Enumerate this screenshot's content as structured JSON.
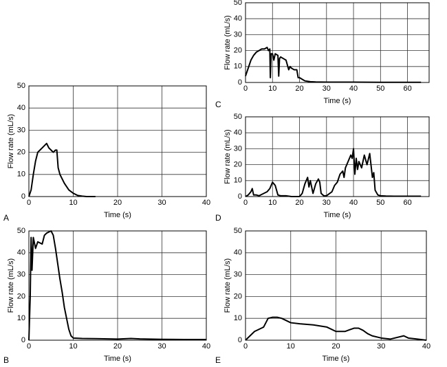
{
  "chart_data": [
    {
      "type": "line",
      "label": "A",
      "xlabel": "Time (s)",
      "ylabel": "Flow rate (mL/s)",
      "xlim": [
        0,
        40
      ],
      "ylim": [
        0,
        50
      ],
      "xticks": [
        0,
        10,
        20,
        30,
        40
      ],
      "yticks": [
        0,
        10,
        20,
        30,
        40,
        50
      ],
      "grid": true,
      "color": "#000000",
      "x": [
        0,
        0.5,
        1,
        1.5,
        2,
        2.5,
        3,
        3.5,
        4,
        4.5,
        5,
        5.5,
        6,
        6.3,
        6.6,
        7,
        8,
        9,
        10,
        11,
        12,
        13,
        15
      ],
      "values": [
        0,
        3,
        10,
        16,
        20,
        21,
        22,
        23,
        24,
        22,
        21,
        20,
        21,
        21,
        13,
        10,
        6,
        3,
        1.5,
        0.5,
        0.2,
        0,
        0
      ]
    },
    {
      "type": "line",
      "label": "B",
      "xlabel": "Time (s)",
      "ylabel": "Flow rate (mL/s)",
      "xlim": [
        0,
        40
      ],
      "ylim": [
        0,
        50
      ],
      "xticks": [
        0,
        10,
        20,
        30,
        40
      ],
      "yticks": [
        0,
        10,
        20,
        30,
        40,
        50
      ],
      "grid": true,
      "color": "#000000",
      "x": [
        0,
        0.3,
        0.5,
        0.7,
        1,
        1.5,
        2,
        3,
        3.5,
        4,
        5,
        5.5,
        6,
        6.5,
        7,
        7.5,
        8,
        8.5,
        9,
        9.5,
        10,
        12,
        15,
        20,
        23,
        25,
        30,
        35,
        40
      ],
      "values": [
        0,
        20,
        47,
        32,
        47,
        42,
        45,
        44,
        48,
        49,
        50,
        48,
        42,
        35,
        28,
        22,
        15,
        10,
        5,
        2,
        1,
        0.8,
        0.7,
        0.5,
        0.8,
        0.6,
        0.4,
        0.3,
        0.3
      ]
    },
    {
      "type": "line",
      "label": "C",
      "xlabel": "Time (s)",
      "ylabel": "Flow rate (mL/s)",
      "xlim": [
        0,
        68
      ],
      "ylim": [
        0,
        50
      ],
      "xticks": [
        0,
        10,
        20,
        30,
        40,
        50,
        60
      ],
      "yticks": [
        0,
        10,
        20,
        30,
        40,
        50
      ],
      "grid": true,
      "color": "#000000",
      "x": [
        0,
        1,
        2,
        3,
        4,
        5,
        6,
        7,
        8,
        8.5,
        9,
        9.2,
        9.5,
        10,
        10.5,
        11,
        12,
        12.3,
        12.6,
        13,
        14,
        15,
        15.5,
        16,
        16.5,
        17,
        18,
        19,
        19.5,
        20,
        21,
        22,
        24,
        26,
        30,
        40,
        50,
        60,
        65
      ],
      "values": [
        4,
        9,
        14,
        17,
        19,
        20,
        21,
        21,
        22,
        20,
        21,
        3,
        18,
        18,
        14,
        18,
        17,
        4,
        15,
        16,
        15,
        14,
        11,
        8,
        10,
        9,
        8,
        8,
        3,
        3,
        2,
        1,
        0.5,
        0.3,
        0.2,
        0.2,
        0.1,
        0.1,
        0.1
      ]
    },
    {
      "type": "line",
      "label": "D",
      "xlabel": "Time (s)",
      "ylabel": "Flow rate (mL/s)",
      "xlim": [
        0,
        68
      ],
      "ylim": [
        0,
        50
      ],
      "xticks": [
        0,
        10,
        20,
        30,
        40,
        50,
        60
      ],
      "yticks": [
        0,
        10,
        20,
        30,
        40,
        50
      ],
      "grid": true,
      "color": "#000000",
      "x": [
        0,
        1,
        2,
        2.5,
        3,
        4,
        5,
        8,
        9,
        10,
        10.5,
        11,
        12,
        13,
        15,
        17,
        20,
        21,
        22,
        23,
        23.5,
        24,
        25,
        26,
        27,
        27.5,
        28,
        29,
        30,
        32,
        33,
        34,
        35,
        36,
        36.5,
        37,
        38,
        39,
        39.5,
        40,
        40.5,
        41,
        41.5,
        42,
        43,
        44,
        45,
        46,
        47,
        47.5,
        48,
        49,
        50,
        52,
        55,
        60,
        65
      ],
      "values": [
        0,
        1,
        3,
        5,
        1,
        1,
        0.5,
        3,
        5,
        9,
        8,
        7,
        1,
        0.5,
        0.5,
        0,
        0,
        2,
        8,
        12,
        6,
        10,
        2,
        8,
        11,
        9,
        2,
        0.5,
        0.5,
        3,
        7,
        9,
        14,
        16,
        12,
        18,
        22,
        26,
        24,
        30,
        14,
        24,
        17,
        22,
        18,
        26,
        20,
        27,
        12,
        15,
        4,
        1,
        0.5,
        0.3,
        0.2,
        0.2,
        0.2
      ]
    },
    {
      "type": "line",
      "label": "E",
      "xlabel": "Time (s)",
      "ylabel": "Flow rate (mL/s)",
      "xlim": [
        0,
        40
      ],
      "ylim": [
        0,
        50
      ],
      "xticks": [
        0,
        10,
        20,
        30,
        40
      ],
      "yticks": [
        0,
        10,
        20,
        30,
        40,
        50
      ],
      "grid": true,
      "color": "#000000",
      "x": [
        0,
        1,
        2,
        3,
        4,
        5,
        6,
        7,
        8,
        10,
        12,
        15,
        18,
        20,
        22,
        24,
        25,
        26,
        27,
        28,
        30,
        32,
        35,
        36,
        38,
        40
      ],
      "values": [
        0,
        2,
        4,
        5,
        6,
        10,
        10.5,
        10.5,
        10,
        8,
        7.5,
        7,
        6,
        4,
        4,
        5.5,
        5.5,
        4.5,
        3,
        2,
        1,
        0.5,
        2,
        1,
        0.5,
        0
      ]
    }
  ]
}
